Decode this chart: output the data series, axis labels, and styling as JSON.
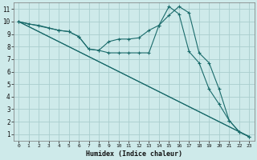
{
  "xlabel": "Humidex (Indice chaleur)",
  "background_color": "#ceeaea",
  "grid_color": "#aacece",
  "line_color": "#1a6b6b",
  "xlim": [
    -0.5,
    23.5
  ],
  "ylim": [
    0.5,
    11.5
  ],
  "xticks": [
    0,
    1,
    2,
    3,
    4,
    5,
    6,
    7,
    8,
    9,
    10,
    11,
    12,
    13,
    14,
    15,
    16,
    17,
    18,
    19,
    20,
    21,
    22,
    23
  ],
  "yticks": [
    1,
    2,
    3,
    4,
    5,
    6,
    7,
    8,
    9,
    10,
    11
  ],
  "line1_x": [
    0,
    1,
    2,
    3,
    4,
    5,
    6,
    7,
    8,
    9,
    10,
    11,
    12,
    13,
    14,
    15,
    16,
    17,
    18,
    19,
    20,
    21,
    22,
    23
  ],
  "line1_y": [
    10,
    9.8,
    9.7,
    9.5,
    9.3,
    9.2,
    8.8,
    7.8,
    7.7,
    8.4,
    8.6,
    8.6,
    8.7,
    9.3,
    9.7,
    10.5,
    11.2,
    10.7,
    7.5,
    6.7,
    4.6,
    2.1,
    1.2,
    0.8
  ],
  "line2_x": [
    0,
    4,
    5,
    6,
    7,
    8,
    9,
    10,
    11,
    12,
    13,
    14,
    15,
    16,
    17,
    18,
    19,
    20,
    21,
    22,
    23
  ],
  "line2_y": [
    10,
    9.3,
    9.2,
    8.8,
    7.8,
    7.7,
    7.5,
    7.5,
    7.5,
    7.5,
    7.5,
    9.7,
    11.2,
    10.6,
    7.6,
    6.7,
    4.6,
    3.4,
    2.1,
    1.2,
    0.8
  ],
  "line3_x": [
    0,
    23
  ],
  "line3_y": [
    10,
    0.8
  ],
  "line4_x": [
    0,
    23
  ],
  "line4_y": [
    10,
    0.8
  ]
}
